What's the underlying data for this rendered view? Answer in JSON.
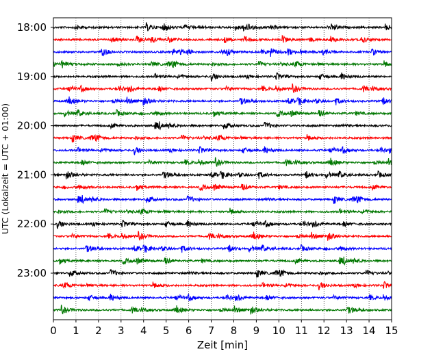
{
  "chart_data": {
    "type": "line",
    "title": "",
    "xlabel": "Zeit  [min]",
    "ylabel": "UTC (Lokalzeit = UTC + 01:00)",
    "xlim": [
      0,
      15
    ],
    "x_ticks": [
      "0",
      "1",
      "2",
      "3",
      "4",
      "5",
      "6",
      "7",
      "8",
      "9",
      "10",
      "11",
      "12",
      "13",
      "14",
      "15"
    ],
    "y_ticks": [
      "18:00",
      "19:00",
      "20:00",
      "21:00",
      "22:00",
      "23:00"
    ],
    "grid": "vertical dotted at each minute",
    "trace_interval_min": 15,
    "trace_count": 24,
    "trace_start": "18:00",
    "trace_colors": [
      "#000000",
      "#ff0000",
      "#0000ff",
      "#007700"
    ]
  }
}
